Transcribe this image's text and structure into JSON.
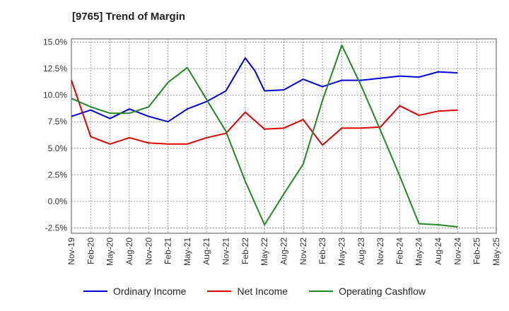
{
  "title": "[9765]  Trend of Margin",
  "colors": {
    "ordinary": "#0000dd",
    "net": "#dd0000",
    "operating": "#228822",
    "grid": "#999999"
  },
  "chart_data": {
    "type": "line",
    "title": "[9765]  Trend of Margin",
    "xlabel": "",
    "ylabel": "",
    "ylim": [
      -3.0,
      15.3
    ],
    "grid": true,
    "legend": "bottom",
    "categories": [
      "Nov-19",
      "Feb-20",
      "May-20",
      "Aug-20",
      "Nov-20",
      "Feb-21",
      "May-21",
      "Aug-21",
      "Nov-21",
      "Feb-22",
      "May-22",
      "Aug-22",
      "Nov-22",
      "Feb-23",
      "May-23",
      "Aug-23",
      "Nov-23",
      "Feb-24",
      "May-24",
      "Aug-24",
      "Nov-24",
      "Feb-25",
      "May-25"
    ],
    "yticks": [
      "15.0%",
      "12.5%",
      "10.0%",
      "7.5%",
      "5.0%",
      "2.5%",
      "0.0%",
      "-2.5%"
    ],
    "ytick_values": [
      15.0,
      12.5,
      10.0,
      7.5,
      5.0,
      2.5,
      0.0,
      -2.5
    ],
    "series": [
      {
        "name": "Ordinary Income",
        "color": "#0000dd",
        "points": [
          [
            0,
            8.0
          ],
          [
            1,
            8.6
          ],
          [
            2,
            7.8
          ],
          [
            3,
            8.7
          ],
          [
            4,
            8.0
          ],
          [
            5,
            7.5
          ],
          [
            6,
            8.7
          ],
          [
            7,
            9.4
          ],
          [
            8,
            10.4
          ],
          [
            9,
            13.5
          ],
          [
            9.5,
            12.3
          ],
          [
            10,
            10.4
          ],
          [
            11,
            10.5
          ],
          [
            12,
            11.5
          ],
          [
            13,
            10.8
          ],
          [
            14,
            11.4
          ],
          [
            15,
            11.4
          ],
          [
            16,
            11.6
          ],
          [
            17,
            11.8
          ],
          [
            18,
            11.7
          ],
          [
            19,
            12.2
          ],
          [
            20,
            12.1
          ]
        ]
      },
      {
        "name": "Net Income",
        "color": "#dd0000",
        "points": [
          [
            0,
            11.4
          ],
          [
            1,
            6.1
          ],
          [
            2,
            5.4
          ],
          [
            3,
            6.0
          ],
          [
            4,
            5.5
          ],
          [
            5,
            5.4
          ],
          [
            6,
            5.4
          ],
          [
            7,
            6.0
          ],
          [
            8,
            6.4
          ],
          [
            9,
            8.4
          ],
          [
            10,
            6.8
          ],
          [
            11,
            6.9
          ],
          [
            12,
            7.7
          ],
          [
            13,
            5.3
          ],
          [
            14,
            6.9
          ],
          [
            15,
            6.9
          ],
          [
            16,
            7.0
          ],
          [
            17,
            9.0
          ],
          [
            18,
            8.1
          ],
          [
            19,
            8.5
          ],
          [
            20,
            8.6
          ]
        ]
      },
      {
        "name": "Operating Cashflow",
        "color": "#228822",
        "points": [
          [
            0,
            9.7
          ],
          [
            1,
            8.9
          ],
          [
            2,
            8.3
          ],
          [
            3,
            8.3
          ],
          [
            4,
            8.9
          ],
          [
            5,
            11.2
          ],
          [
            6,
            12.6
          ],
          [
            7,
            9.6
          ],
          [
            8,
            6.6
          ],
          [
            9,
            1.9
          ],
          [
            10,
            -2.2
          ],
          [
            11,
            0.7
          ],
          [
            12,
            3.5
          ],
          [
            13,
            9.5
          ],
          [
            14,
            14.7
          ],
          [
            15,
            10.9
          ],
          [
            16,
            6.7
          ],
          [
            17,
            2.4
          ],
          [
            18,
            -2.1
          ],
          [
            19,
            -2.2
          ],
          [
            20,
            -2.4
          ]
        ]
      }
    ]
  }
}
